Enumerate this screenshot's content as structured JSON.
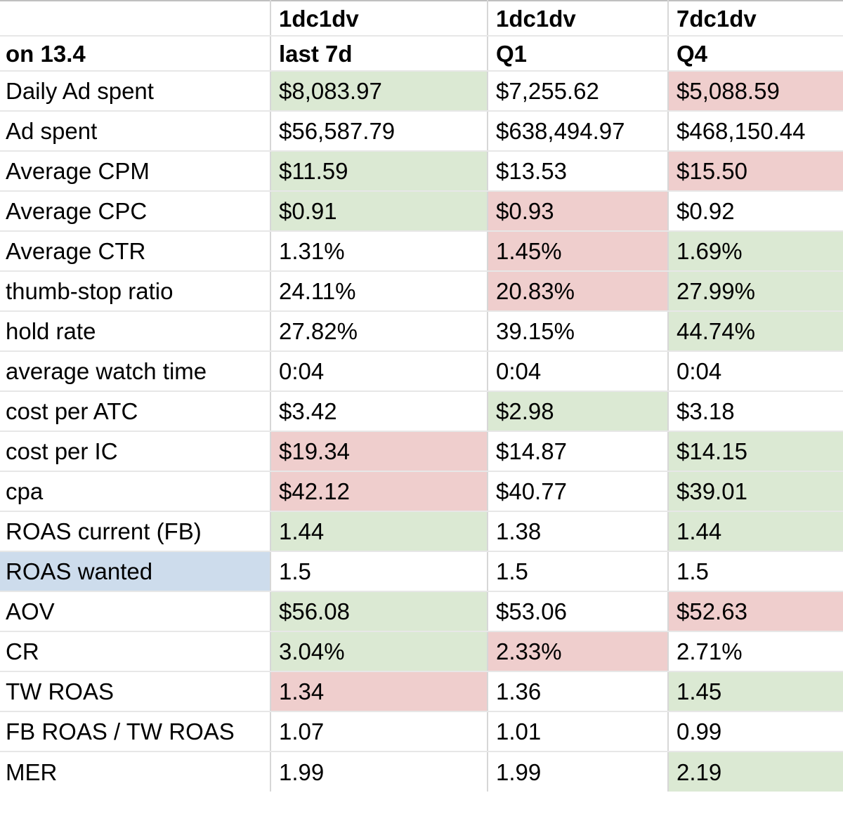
{
  "header": {
    "row1": [
      "",
      "1dc1dv",
      "1dc1dv",
      "7dc1dv"
    ],
    "row2": [
      "on 13.4",
      "last 7d",
      "Q1",
      "Q4"
    ]
  },
  "rows": [
    {
      "label": "Daily Ad spent",
      "label_bg": "white",
      "values": [
        "$8,083.97",
        "$7,255.62",
        "$5,088.59"
      ],
      "value_bgs": [
        "green",
        "white",
        "red"
      ]
    },
    {
      "label": "Ad spent",
      "label_bg": "white",
      "values": [
        "$56,587.79",
        "$638,494.97",
        "$468,150.44"
      ],
      "value_bgs": [
        "white",
        "white",
        "white"
      ]
    },
    {
      "label": "Average CPM",
      "label_bg": "white",
      "values": [
        "$11.59",
        "$13.53",
        "$15.50"
      ],
      "value_bgs": [
        "green",
        "white",
        "red"
      ]
    },
    {
      "label": "Average CPC",
      "label_bg": "white",
      "values": [
        "$0.91",
        "$0.93",
        "$0.92"
      ],
      "value_bgs": [
        "green",
        "red",
        "white"
      ]
    },
    {
      "label": "Average CTR",
      "label_bg": "white",
      "values": [
        "1.31%",
        "1.45%",
        "1.69%"
      ],
      "value_bgs": [
        "white",
        "red",
        "green"
      ]
    },
    {
      "label": "thumb-stop ratio",
      "label_bg": "white",
      "values": [
        "24.11%",
        "20.83%",
        "27.99%"
      ],
      "value_bgs": [
        "white",
        "red",
        "green"
      ]
    },
    {
      "label": "hold rate",
      "label_bg": "white",
      "values": [
        "27.82%",
        "39.15%",
        "44.74%"
      ],
      "value_bgs": [
        "white",
        "white",
        "green"
      ]
    },
    {
      "label": "average watch time",
      "label_bg": "white",
      "values": [
        "0:04",
        "0:04",
        "0:04"
      ],
      "value_bgs": [
        "white",
        "white",
        "white"
      ]
    },
    {
      "label": "cost per ATC",
      "label_bg": "white",
      "values": [
        "$3.42",
        "$2.98",
        "$3.18"
      ],
      "value_bgs": [
        "white",
        "green",
        "white"
      ]
    },
    {
      "label": "cost per IC",
      "label_bg": "white",
      "values": [
        "$19.34",
        "$14.87",
        "$14.15"
      ],
      "value_bgs": [
        "red",
        "white",
        "green"
      ]
    },
    {
      "label": "cpa",
      "label_bg": "white",
      "values": [
        "$42.12",
        "$40.77",
        "$39.01"
      ],
      "value_bgs": [
        "red",
        "white",
        "green"
      ]
    },
    {
      "label": "ROAS current (FB)",
      "label_bg": "white",
      "values": [
        "1.44",
        "1.38",
        "1.44"
      ],
      "value_bgs": [
        "green",
        "white",
        "green"
      ]
    },
    {
      "label": "ROAS wanted",
      "label_bg": "blue",
      "values": [
        "1.5",
        "1.5",
        "1.5"
      ],
      "value_bgs": [
        "white",
        "white",
        "white"
      ]
    },
    {
      "label": "AOV",
      "label_bg": "white",
      "values": [
        "$56.08",
        "$53.06",
        "$52.63"
      ],
      "value_bgs": [
        "green",
        "white",
        "red"
      ]
    },
    {
      "label": "CR",
      "label_bg": "white",
      "values": [
        "3.04%",
        "2.33%",
        "2.71%"
      ],
      "value_bgs": [
        "green",
        "red",
        "white"
      ]
    },
    {
      "label": "TW ROAS",
      "label_bg": "white",
      "values": [
        "1.34",
        "1.36",
        "1.45"
      ],
      "value_bgs": [
        "red",
        "white",
        "green"
      ]
    },
    {
      "label": "FB ROAS / TW ROAS",
      "label_bg": "white",
      "values": [
        "1.07",
        "1.01",
        "0.99"
      ],
      "value_bgs": [
        "white",
        "white",
        "white"
      ]
    },
    {
      "label": "MER",
      "label_bg": "white",
      "values": [
        "1.99",
        "1.99",
        "2.19"
      ],
      "value_bgs": [
        "white",
        "white",
        "green"
      ]
    }
  ],
  "palette": {
    "green": "#dbe9d3",
    "red": "#efcecd",
    "blue": "#cddcec",
    "white": "#ffffff"
  }
}
